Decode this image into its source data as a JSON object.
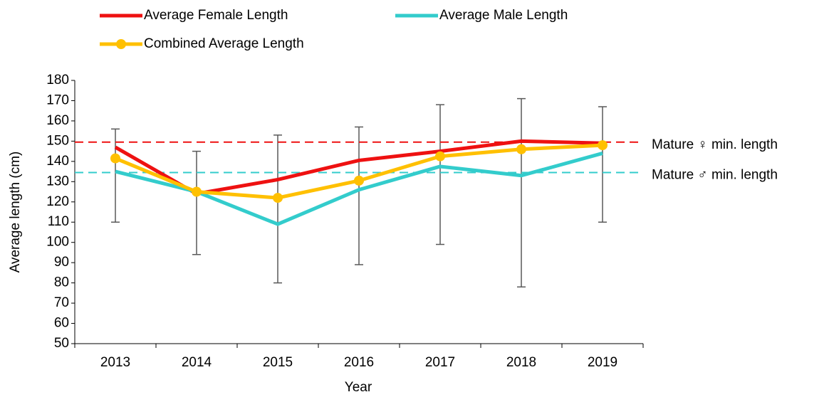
{
  "chart_data": {
    "type": "line",
    "categories": [
      "2013",
      "2014",
      "2015",
      "2016",
      "2017",
      "2018",
      "2019"
    ],
    "series": [
      {
        "name": "Average Female Length",
        "color": "#ee1111",
        "values": [
          147,
          124,
          131,
          140.5,
          145,
          150,
          149
        ]
      },
      {
        "name": "Average Male Length",
        "color": "#33cccc",
        "values": [
          135,
          125,
          109,
          126,
          137.5,
          133,
          144
        ]
      },
      {
        "name": "Combined Average Length",
        "color": "#ffc000",
        "marker": true,
        "values": [
          141.5,
          125,
          122,
          130.5,
          142.5,
          146,
          148
        ],
        "error_low": [
          110,
          94,
          80,
          89,
          99,
          78,
          110
        ],
        "error_high": [
          156,
          145,
          153,
          157,
          168,
          171,
          167
        ]
      }
    ],
    "reference_lines": [
      {
        "value": 149.5,
        "label": "Mature ♀ min. length",
        "color": "#ee1111"
      },
      {
        "value": 134.5,
        "label": "Mature ♂ min. length",
        "color": "#33cccc"
      }
    ],
    "x_label": "Year",
    "y_label": "Average length (cm)",
    "ylim": [
      50,
      180
    ],
    "yticks": [
      50,
      60,
      70,
      80,
      90,
      100,
      110,
      120,
      130,
      140,
      150,
      160,
      170,
      180
    ],
    "error_color": "#595959"
  }
}
